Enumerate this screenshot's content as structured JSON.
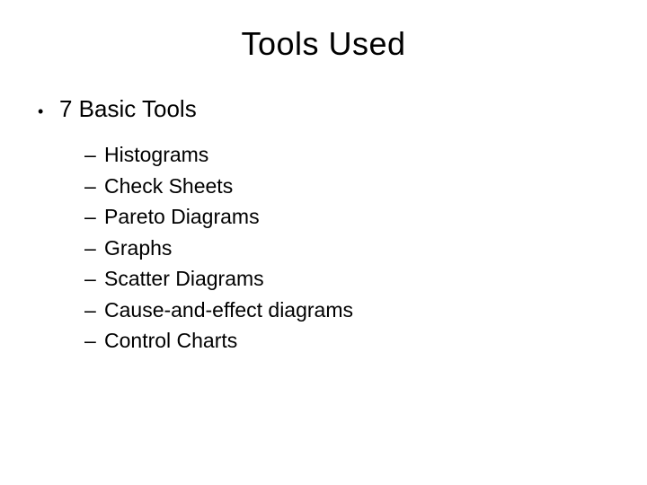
{
  "slide": {
    "title": "Tools Used",
    "main_bullet": "7 Basic Tools",
    "sub_items": [
      "Histograms",
      "Check Sheets",
      "Pareto Diagrams",
      "Graphs",
      "Scatter Diagrams",
      "Cause-and-effect diagrams",
      "Control Charts"
    ],
    "colors": {
      "background": "#ffffff",
      "text": "#000000"
    },
    "typography": {
      "title_fontsize": 36,
      "l1_fontsize": 26,
      "l2_fontsize": 23,
      "font_family": "Arial"
    },
    "bullets": {
      "l1_marker": "•",
      "l2_marker": "–"
    }
  }
}
